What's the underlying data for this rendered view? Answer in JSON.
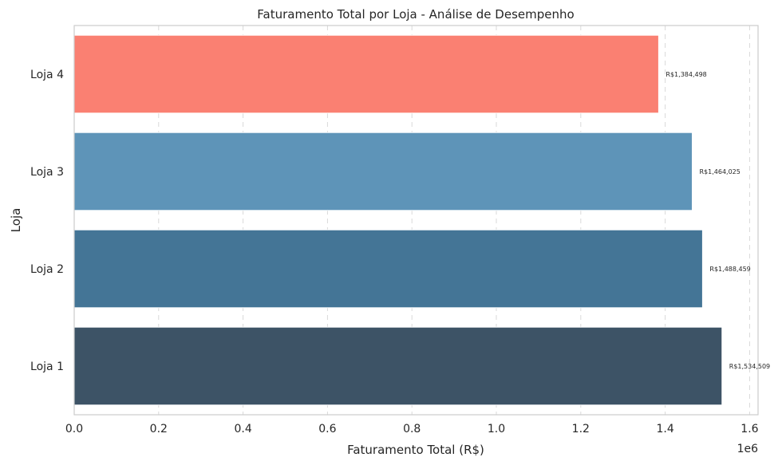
{
  "chart_data": {
    "type": "bar",
    "orientation": "horizontal",
    "title": "Faturamento Total por Loja - Análise de Desempenho",
    "xlabel": "Faturamento Total (R$)",
    "ylabel": "Loja",
    "x_offset_label": "1e6",
    "categories": [
      "Loja 1",
      "Loja 2",
      "Loja 3",
      "Loja 4"
    ],
    "values": [
      1534509,
      1488459,
      1464025,
      1384498
    ],
    "value_labels": [
      "R$1,534,509",
      "R$1,488,459",
      "R$1,464,025",
      "R$1,384,498"
    ],
    "colors": [
      "#3d5366",
      "#447596",
      "#5e94b8",
      "#fa8072"
    ],
    "xlim": [
      0,
      1620000
    ],
    "x_ticks": [
      0,
      200000,
      400000,
      600000,
      800000,
      1000000,
      1200000,
      1400000,
      1600000
    ],
    "x_tick_labels": [
      "0.0",
      "0.2",
      "0.4",
      "0.6",
      "0.8",
      "1.0",
      "1.2",
      "1.4",
      "1.6"
    ],
    "grid": "x-dashed",
    "legend": "none"
  }
}
